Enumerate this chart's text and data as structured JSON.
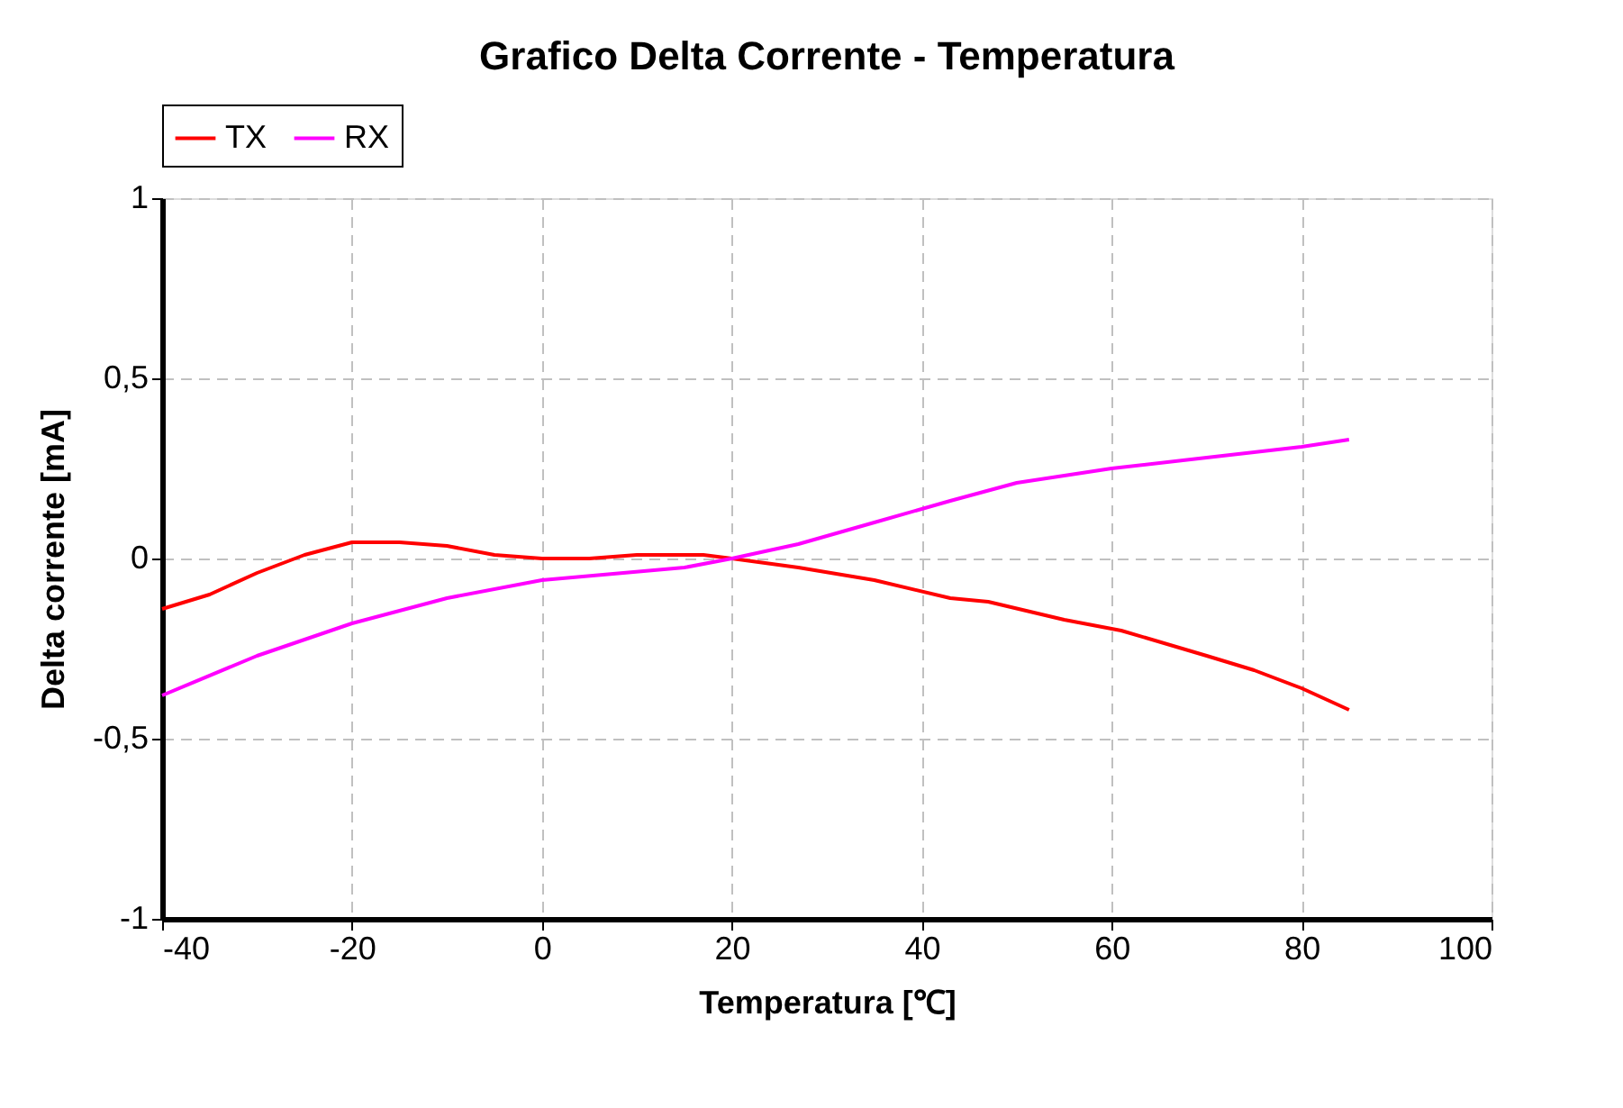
{
  "chart_data": {
    "type": "line",
    "title": "Grafico Delta Corrente - Temperatura",
    "xlabel": "Temperatura [℃]",
    "ylabel": "Delta corrente [mA]",
    "xlim": [
      -40,
      100
    ],
    "xticks": [
      -40,
      -20,
      0,
      20,
      40,
      60,
      80,
      100
    ],
    "ylim": [
      -1,
      1
    ],
    "yticks": [
      -1,
      {
        "value": -0.5,
        "label": "-0,5"
      },
      0,
      {
        "value": 0.5,
        "label": "0,5"
      },
      1
    ],
    "grid": true,
    "legend": "top",
    "marker": "none",
    "line_style": "solid",
    "series": [
      {
        "name": "TX",
        "color": "#ff0000",
        "x": [
          -40,
          -35,
          -30,
          -25,
          -20,
          -15,
          -10,
          -5,
          0,
          5,
          10,
          17,
          20,
          27,
          35,
          43,
          47,
          55,
          61,
          70,
          75,
          80,
          85
        ],
        "values": [
          -0.14,
          -0.1,
          -0.04,
          0.01,
          0.045,
          0.045,
          0.035,
          0.01,
          0,
          0,
          0.01,
          0.01,
          0,
          -0.025,
          -0.06,
          -0.11,
          -0.12,
          -0.17,
          -0.2,
          -0.27,
          -0.31,
          -0.36,
          -0.42
        ]
      },
      {
        "name": "RX",
        "color": "#ff00ff",
        "x": [
          -40,
          -30,
          -20,
          -10,
          0,
          15,
          20,
          27,
          35,
          43,
          50,
          60,
          70,
          80,
          85
        ],
        "values": [
          -0.38,
          -0.27,
          -0.18,
          -0.11,
          -0.06,
          -0.025,
          0,
          0.04,
          0.1,
          0.16,
          0.21,
          0.25,
          0.28,
          0.31,
          0.33
        ]
      }
    ]
  }
}
